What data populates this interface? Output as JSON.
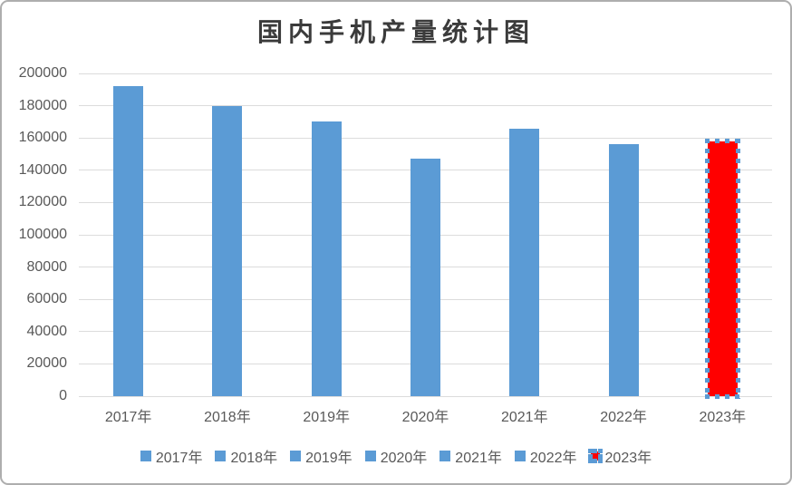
{
  "chart_data": {
    "type": "bar",
    "title": "国内手机产量统计图",
    "categories": [
      "2017年",
      "2018年",
      "2019年",
      "2020年",
      "2021年",
      "2022年",
      "2023年"
    ],
    "values": [
      192000,
      180000,
      170000,
      147000,
      166000,
      156000,
      158000
    ],
    "xlabel": "",
    "ylabel": "",
    "ylim": [
      0,
      200000
    ],
    "ytick_step": 20000,
    "ytick_labels": [
      "0",
      "20000",
      "40000",
      "60000",
      "80000",
      "100000",
      "120000",
      "140000",
      "160000",
      "180000",
      "200000"
    ],
    "grid": true,
    "legend_position": "bottom",
    "legend": [
      "2017年",
      "2018年",
      "2019年",
      "2020年",
      "2021年",
      "2022年",
      "2023年"
    ],
    "selected_category": "2023年",
    "colors": {
      "bar": "#5b9bd5",
      "selected_bar": "#ff0000",
      "selection_handle": "#5b9bd5",
      "gridline": "#dcdcdc",
      "axis_label": "#595959",
      "title": "#3b3b3b",
      "chart_border": "#aeaeae"
    }
  }
}
